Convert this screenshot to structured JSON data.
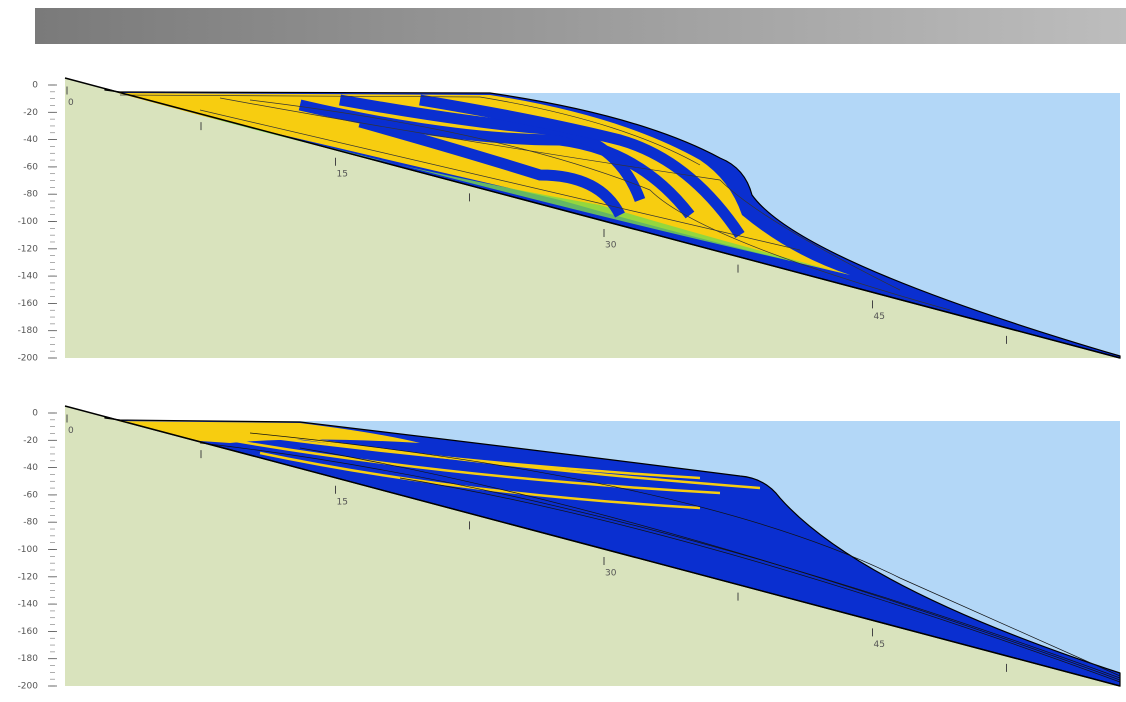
{
  "chart_data": [
    {
      "type": "cross-section",
      "ylim": [
        -200,
        0
      ],
      "yticks": [
        0,
        -20,
        -40,
        -60,
        -80,
        -100,
        -120,
        -140,
        -160,
        -180,
        -200
      ],
      "distance_ticks": [
        0,
        15,
        30,
        45
      ]
    },
    {
      "type": "cross-section",
      "ylim": [
        -200,
        0
      ],
      "yticks": [
        0,
        -20,
        -40,
        -60,
        -80,
        -100,
        -120,
        -140,
        -160,
        -180,
        -200
      ],
      "distance_ticks": [
        0,
        15,
        30,
        45
      ]
    }
  ]
}
